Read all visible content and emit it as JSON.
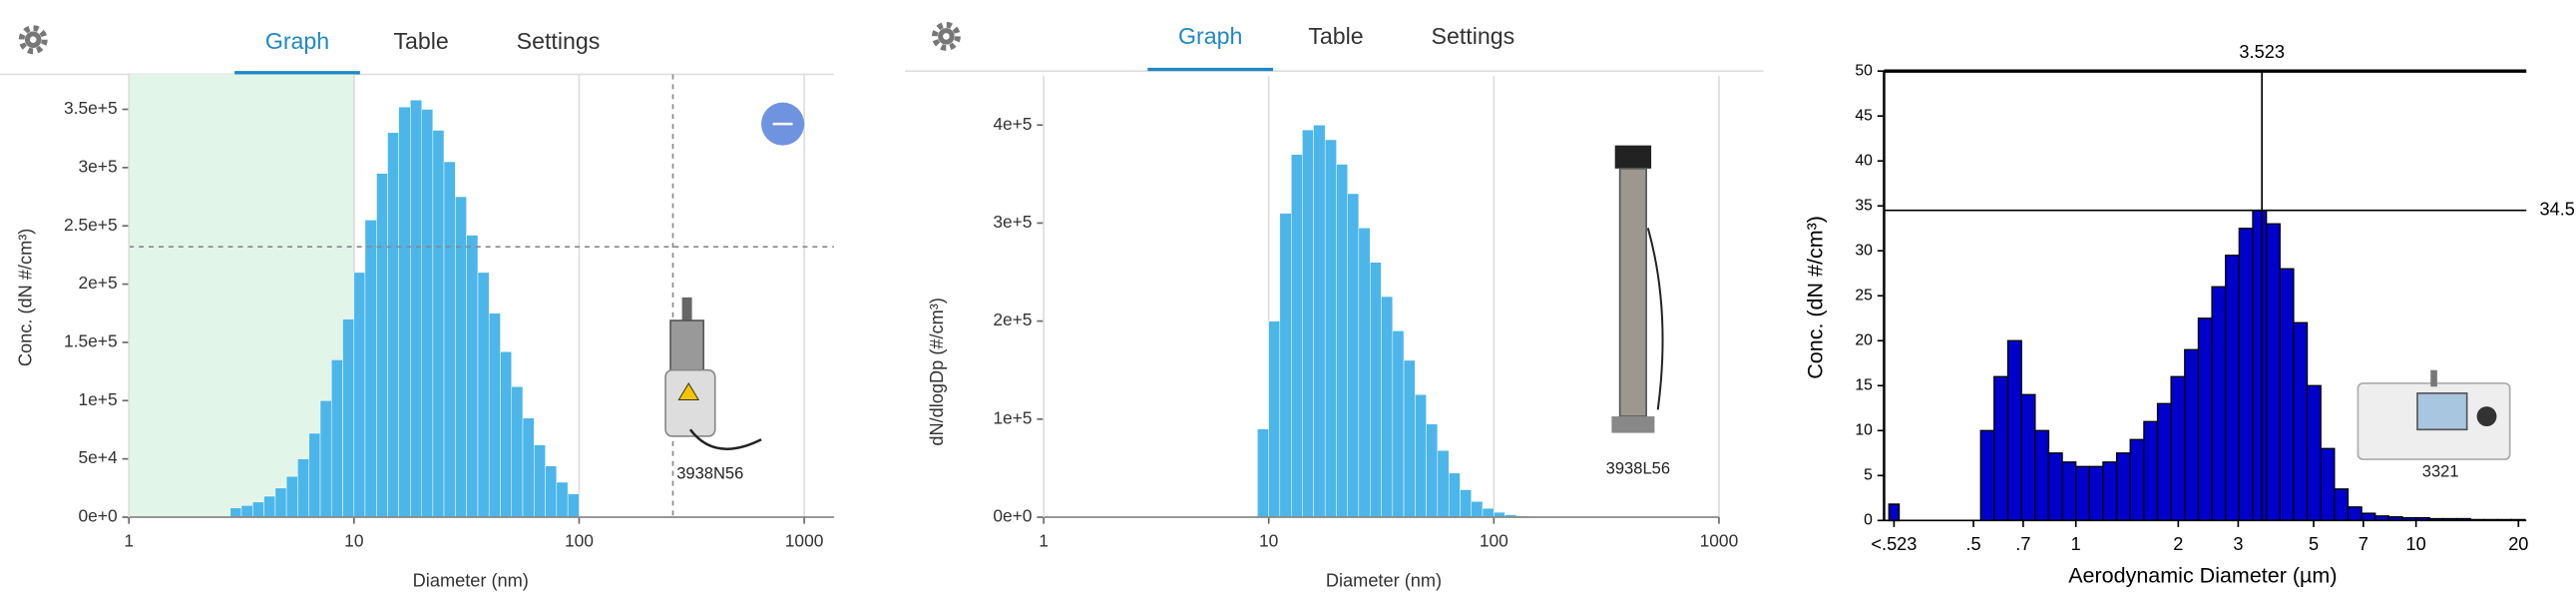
{
  "tabs": [
    [
      "Graph",
      "Table",
      "Settings"
    ],
    [
      "Graph",
      "Table",
      "Settings"
    ]
  ],
  "chart_data": [
    {
      "type": "histogram",
      "x_label": "Diameter (nm)",
      "y_label": "Conc. (dN #/cm³)",
      "instrument": "3938N56",
      "color": "#4cb6ea",
      "xscale": "log",
      "grid": "x",
      "xlim": [
        1,
        1000
      ],
      "ylim": [
        0,
        380000
      ],
      "xticks": [
        1,
        10,
        100,
        1000
      ],
      "yticks": [
        {
          "value": 0,
          "label": "0e+0"
        },
        {
          "value": 50000,
          "label": "5e+4"
        },
        {
          "value": 100000,
          "label": "1e+5"
        },
        {
          "value": 150000,
          "label": "1.5e+5"
        },
        {
          "value": 200000,
          "label": "2e+5"
        },
        {
          "value": 250000,
          "label": "2.5e+5"
        },
        {
          "value": 300000,
          "label": "3e+5"
        },
        {
          "value": 350000,
          "label": "3.5e+5"
        }
      ],
      "highlight": [
        1,
        10
      ],
      "highlight_color": "#e2f5e9",
      "cursor": {
        "x": 261,
        "y": 232000
      },
      "bins": [
        2.82,
        3.16,
        3.55,
        3.98,
        4.47,
        5.01,
        5.62,
        6.31,
        7.08,
        7.94,
        8.91,
        10,
        11.2,
        12.6,
        14.1,
        15.8,
        17.8,
        20.0,
        22.4,
        25.1,
        28.2,
        31.6,
        35.5,
        39.8,
        44.7,
        50.1,
        56.2,
        63.1,
        70.8,
        79.4,
        89.1,
        100
      ],
      "values": [
        8000,
        10000,
        13000,
        18000,
        25000,
        35000,
        50000,
        72000,
        100000,
        135000,
        170000,
        210000,
        255000,
        295000,
        330000,
        352000,
        358000,
        350000,
        332000,
        305000,
        275000,
        242000,
        210000,
        175000,
        142000,
        112000,
        85000,
        62000,
        44000,
        30000,
        20000
      ]
    },
    {
      "type": "histogram",
      "x_label": "Diameter (nm)",
      "y_label": "dN/dlogDp (#/cm³)",
      "instrument": "3938L56",
      "color": "#4cb6ea",
      "xscale": "log",
      "grid": "x",
      "xlim": [
        1,
        1000
      ],
      "ylim": [
        0,
        450000
      ],
      "xticks": [
        1,
        10,
        100,
        1000
      ],
      "yticks": [
        {
          "value": 0,
          "label": "0e+0"
        },
        {
          "value": 100000,
          "label": "1e+5"
        },
        {
          "value": 200000,
          "label": "2e+5"
        },
        {
          "value": 300000,
          "label": "3e+5"
        },
        {
          "value": 400000,
          "label": "4e+5"
        }
      ],
      "bins": [
        8.91,
        10,
        11.2,
        12.6,
        14.1,
        15.8,
        17.8,
        20.0,
        22.4,
        25.1,
        28.2,
        31.6,
        35.5,
        39.8,
        44.7,
        50.1,
        56.2,
        63.1,
        70.8,
        79.4,
        89.1,
        100,
        112,
        126,
        141,
        158,
        178,
        200
      ],
      "values": [
        90000,
        200000,
        310000,
        370000,
        395000,
        400000,
        385000,
        360000,
        330000,
        295000,
        260000,
        225000,
        190000,
        160000,
        125000,
        95000,
        68000,
        45000,
        28000,
        16000,
        9000,
        5000,
        2500,
        1200,
        600,
        300,
        100
      ]
    },
    {
      "type": "histogram",
      "x_label": "Aerodynamic Diameter (µm)",
      "y_label": "Conc. (dN #/cm³)",
      "instrument": "3321",
      "color": "#0000cc",
      "edgecolor": "#000000",
      "xscale": "log",
      "grid": "none",
      "xlim": [
        0.273,
        21.1
      ],
      "ylim": [
        0,
        50
      ],
      "xticks": [
        {
          "value": 0.292,
          "label": "<.523"
        },
        {
          "value": 0.5,
          "label": ".5"
        },
        {
          "value": 0.7,
          "label": ".7"
        },
        1,
        2,
        3,
        5,
        7,
        10,
        20
      ],
      "yticks": [
        0,
        5,
        10,
        15,
        20,
        25,
        30,
        35,
        40,
        45,
        50
      ],
      "crosshair": {
        "x": 3.523,
        "y": 34.5
      },
      "below_range": 1.8,
      "bins": [
        0.525,
        0.575,
        0.631,
        0.692,
        0.759,
        0.832,
        0.912,
        1,
        1.096,
        1.202,
        1.318,
        1.445,
        1.585,
        1.738,
        1.905,
        2.089,
        2.291,
        2.512,
        2.754,
        3.02,
        3.311,
        3.631,
        3.981,
        4.365,
        4.786,
        5.248,
        5.754,
        6.31,
        6.918,
        7.586,
        8.318,
        9.12,
        10,
        10.96,
        12.02,
        13.18,
        14.45,
        15.85,
        17.38,
        19.05,
        20.89
      ],
      "values": [
        10,
        16,
        20,
        14,
        10,
        7.5,
        6.5,
        6,
        6,
        6.5,
        7.5,
        9,
        11,
        13,
        16,
        19,
        22.5,
        26,
        29.5,
        32.5,
        34.5,
        33,
        28,
        22,
        15,
        8,
        3.5,
        1.5,
        0.8,
        0.5,
        0.4,
        0.3,
        0.3,
        0.2,
        0.2,
        0.2,
        0.1,
        0.1,
        0.1,
        0.1
      ]
    }
  ]
}
